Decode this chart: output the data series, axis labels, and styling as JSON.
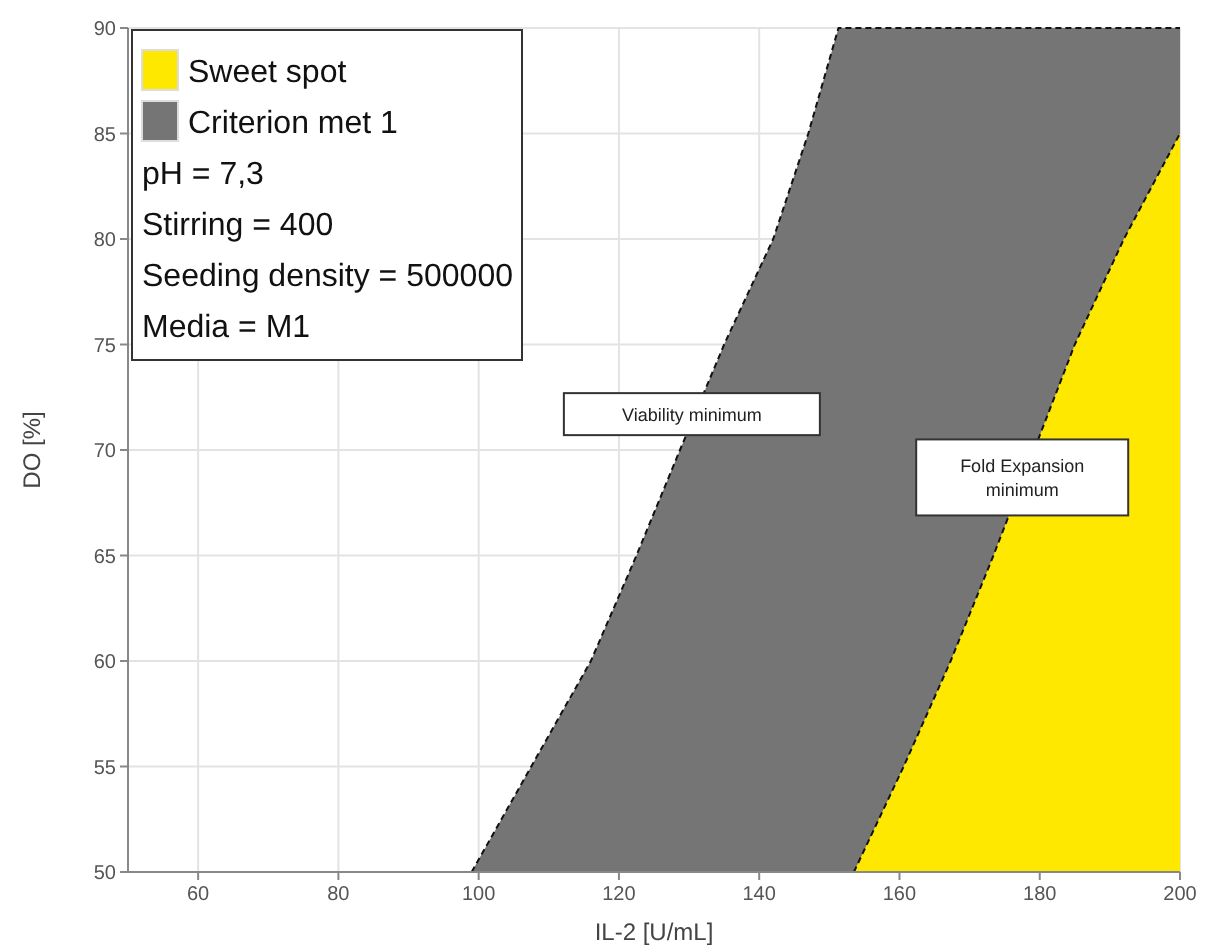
{
  "chart_data": {
    "type": "area",
    "xlabel": "IL-2 [U/mL]",
    "ylabel": "DO [%]",
    "xlim": [
      50,
      200
    ],
    "ylim": [
      50,
      90
    ],
    "xticks": [
      60,
      80,
      100,
      120,
      140,
      160,
      180,
      200
    ],
    "yticks": [
      50,
      55,
      60,
      65,
      70,
      75,
      80,
      85,
      90
    ],
    "grid": true,
    "legend": "top left",
    "line_style": "dashed",
    "series": [
      {
        "name": "Criterion met 1",
        "color": "#757575",
        "x": [
          99,
          107.5,
          116,
          122.5,
          128.7,
          135,
          142,
          147,
          151.3,
          200
        ],
        "values": [
          50,
          55,
          60,
          65,
          70,
          75,
          80,
          85,
          90,
          90
        ]
      },
      {
        "name": "Sweet spot",
        "color": "#ffe800",
        "x": [
          153.5,
          160.6,
          167.3,
          173.4,
          185,
          192,
          200
        ],
        "values": [
          50,
          55,
          60,
          65,
          75,
          80,
          85
        ]
      }
    ],
    "annotations": [
      "pH = 7,3",
      "Stirring = 400",
      "Seeding density = 500000",
      "Media = M1",
      {
        "text": "Viability minimum",
        "x": 130.4,
        "y": 71.7
      },
      {
        "text": "Fold Expansion minimum",
        "x": 177.5,
        "y": 68.7
      }
    ]
  }
}
